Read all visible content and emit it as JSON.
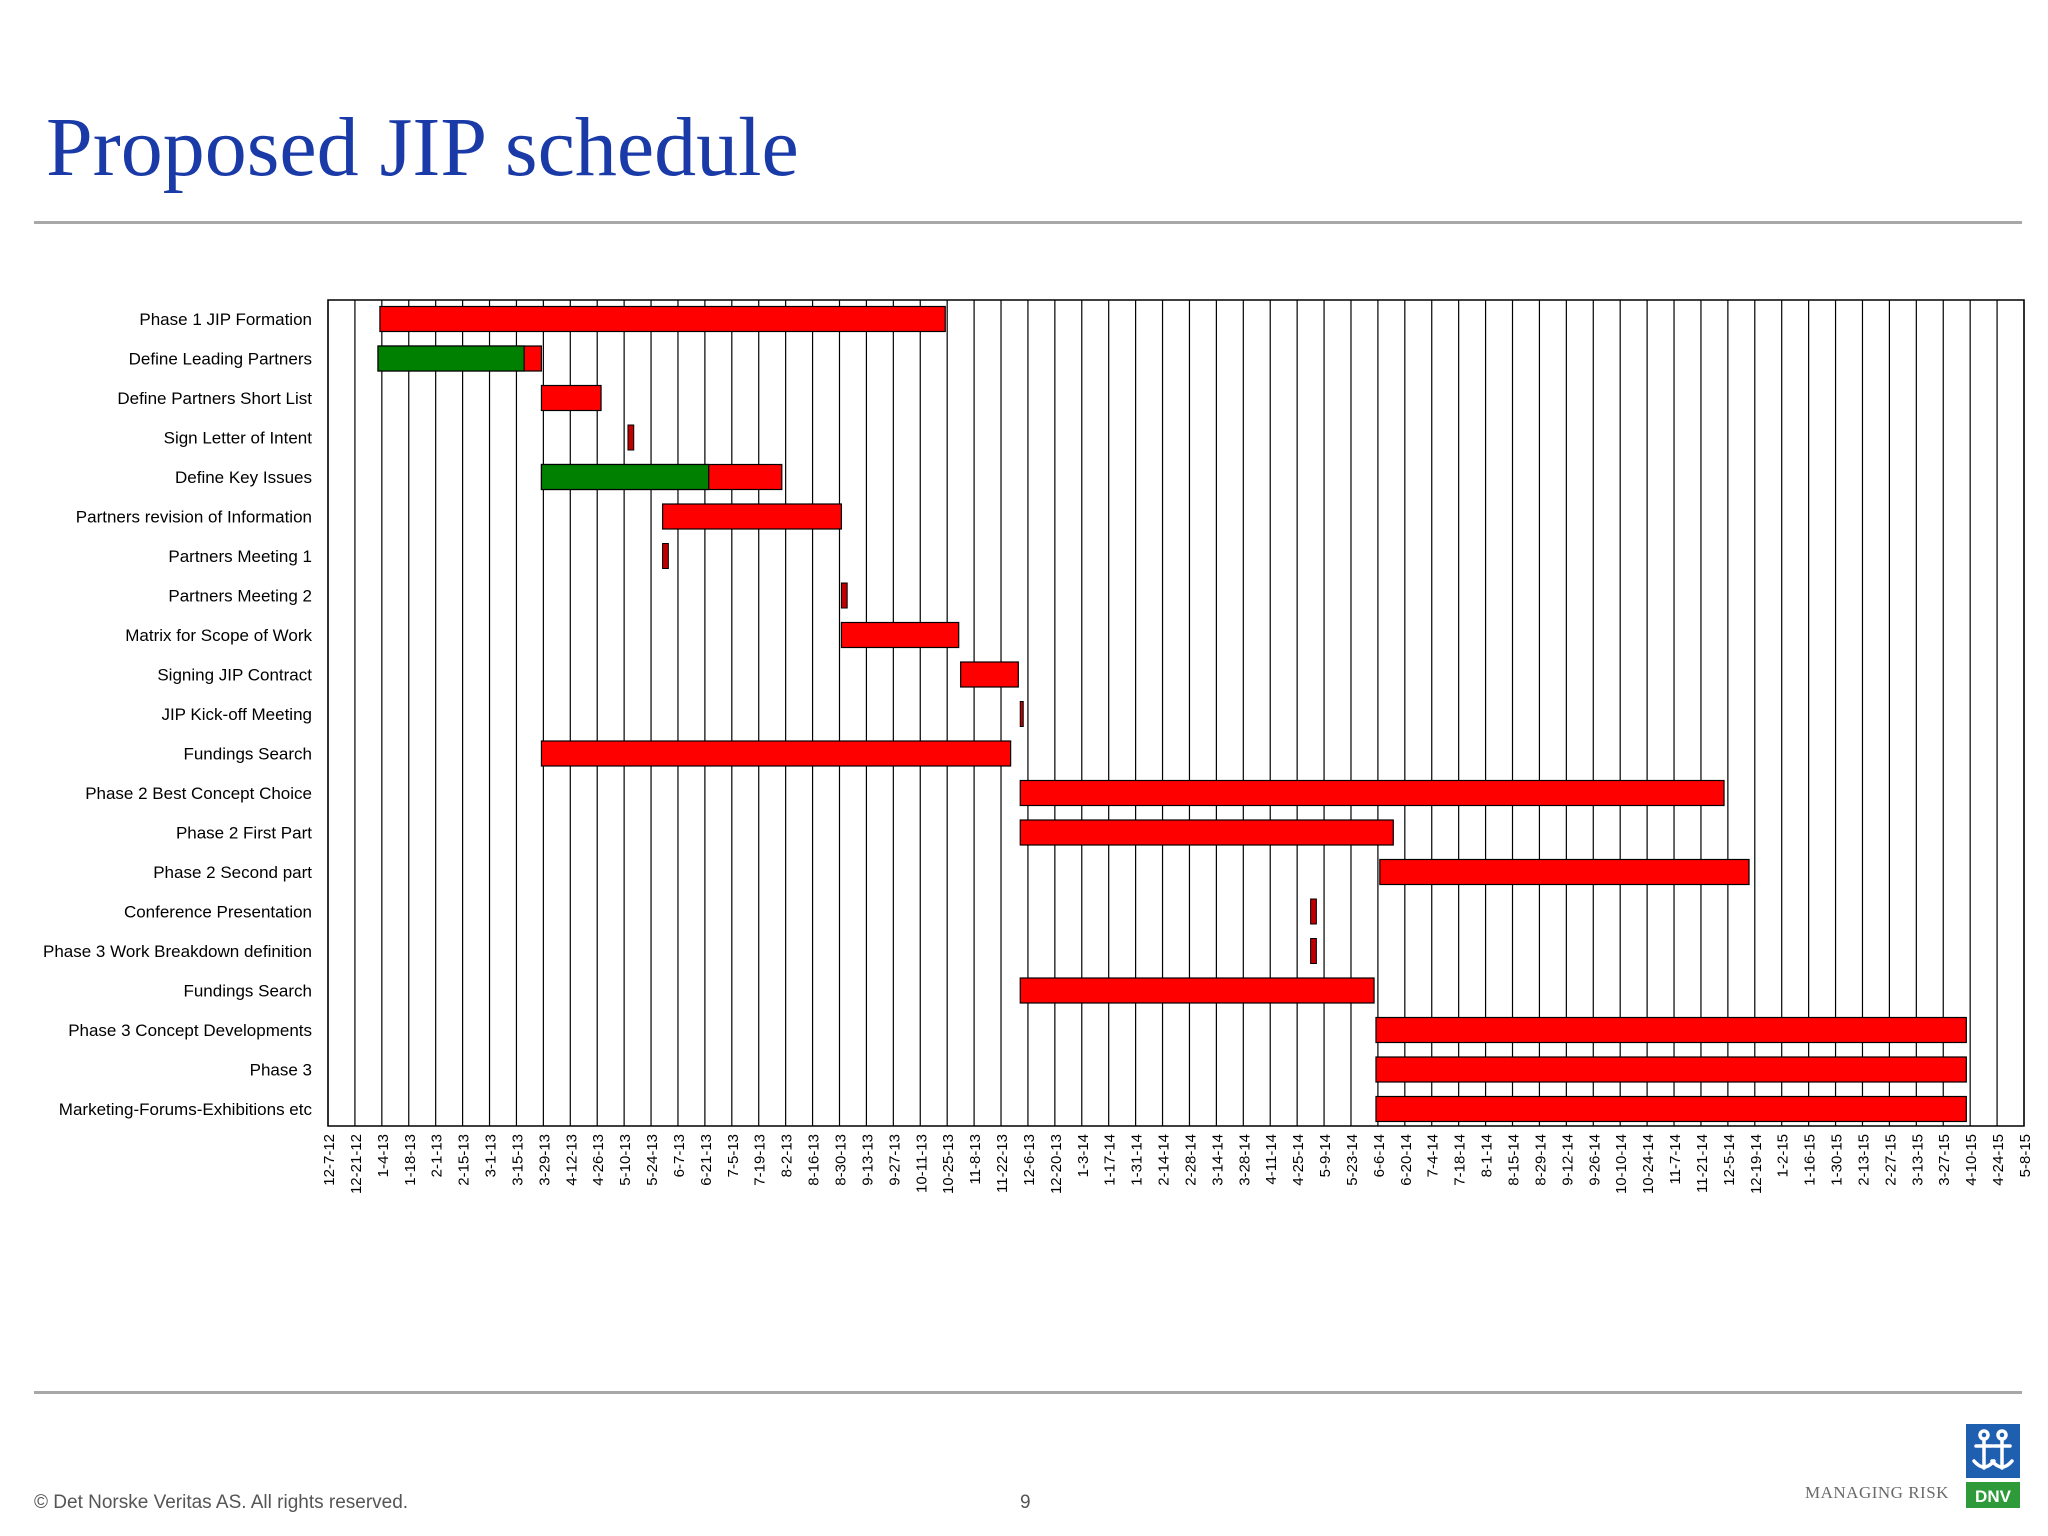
{
  "slide": {
    "title": "Proposed JIP schedule",
    "footer_copyright": "© Det Norske Veritas AS. All rights reserved.",
    "page_number": "9",
    "tagline": "MANAGING RISK",
    "logo": {
      "icon": "dnv-logo-icon",
      "text": "DNV"
    }
  },
  "chart_data": {
    "type": "gantt",
    "colors": {
      "completed": "#008000",
      "planned": "#ff0000",
      "milestone": "#c00000",
      "grid": "#000000"
    },
    "x_ticks": [
      "12-7-12",
      "12-21-12",
      "1-4-13",
      "1-18-13",
      "2-1-13",
      "2-15-13",
      "3-1-13",
      "3-15-13",
      "3-29-13",
      "4-12-13",
      "4-26-13",
      "5-10-13",
      "5-24-13",
      "6-7-13",
      "6-21-13",
      "7-5-13",
      "7-19-13",
      "8-2-13",
      "8-16-13",
      "8-30-13",
      "9-13-13",
      "9-27-13",
      "10-11-13",
      "10-25-13",
      "11-8-13",
      "11-22-13",
      "12-6-13",
      "12-20-13",
      "1-3-14",
      "1-17-14",
      "1-31-14",
      "2-14-14",
      "2-28-14",
      "3-14-14",
      "3-28-14",
      "4-11-14",
      "4-25-14",
      "5-9-14",
      "5-23-14",
      "6-6-14",
      "6-20-14",
      "7-4-14",
      "7-18-14",
      "8-1-14",
      "8-15-14",
      "8-29-14",
      "9-12-14",
      "9-26-14",
      "10-10-14",
      "10-24-14",
      "11-7-14",
      "11-21-14",
      "12-5-14",
      "12-19-14",
      "1-2-15",
      "1-16-15",
      "1-30-15",
      "2-13-15",
      "2-27-15",
      "3-13-15",
      "3-27-15",
      "4-10-15",
      "4-24-15",
      "5-8-15"
    ],
    "tasks": [
      {
        "name": "Phase 1 JIP Formation",
        "start": "2013-01-03",
        "end": "2013-10-24"
      },
      {
        "name": "Define Leading Partners",
        "start": "2013-01-02",
        "end": "2013-03-28",
        "completed_until": "2013-03-19"
      },
      {
        "name": "Define Partners Short List",
        "start": "2013-03-28",
        "end": "2013-04-28"
      },
      {
        "name": "Sign Letter of Intent",
        "start": "2013-05-12",
        "end": "2013-05-15",
        "milestone": true
      },
      {
        "name": "Define Key Issues",
        "start": "2013-03-28",
        "end": "2013-07-31",
        "completed_until": "2013-06-23"
      },
      {
        "name": "Partners revision of Information",
        "start": "2013-05-30",
        "end": "2013-08-31"
      },
      {
        "name": "Partners Meeting 1",
        "start": "2013-05-30",
        "end": "2013-06-02",
        "milestone": true
      },
      {
        "name": "Partners Meeting 2",
        "start": "2013-08-31",
        "end": "2013-09-03",
        "milestone": true
      },
      {
        "name": "Matrix for Scope of Work",
        "start": "2013-08-31",
        "end": "2013-10-31"
      },
      {
        "name": "Signing JIP Contract",
        "start": "2013-11-01",
        "end": "2013-12-01"
      },
      {
        "name": "JIP Kick-off Meeting",
        "start": "2013-12-02",
        "end": "2013-12-03",
        "milestone": true
      },
      {
        "name": "Fundings Search",
        "start": "2013-03-28",
        "end": "2013-11-27"
      },
      {
        "name": "Phase 2 Best Concept Choice",
        "start": "2013-12-02",
        "end": "2014-12-03"
      },
      {
        "name": "Phase 2 First Part",
        "start": "2013-12-02",
        "end": "2014-06-14"
      },
      {
        "name": "Phase 2 Second part",
        "start": "2014-06-07",
        "end": "2014-12-16"
      },
      {
        "name": "Conference Presentation",
        "start": "2014-05-02",
        "end": "2014-05-05",
        "milestone": true
      },
      {
        "name": "Phase 3 Work Breakdown definition",
        "start": "2014-05-02",
        "end": "2014-05-05",
        "milestone": true
      },
      {
        "name": "Fundings Search",
        "start": "2013-12-02",
        "end": "2014-06-04"
      },
      {
        "name": "Phase 3 Concept Developments",
        "start": "2014-06-05",
        "end": "2015-04-08"
      },
      {
        "name": "Phase 3",
        "start": "2014-06-05",
        "end": "2015-04-08"
      },
      {
        "name": "Marketing-Forums-Exhibitions etc",
        "start": "2014-06-05",
        "end": "2015-04-08"
      }
    ]
  }
}
